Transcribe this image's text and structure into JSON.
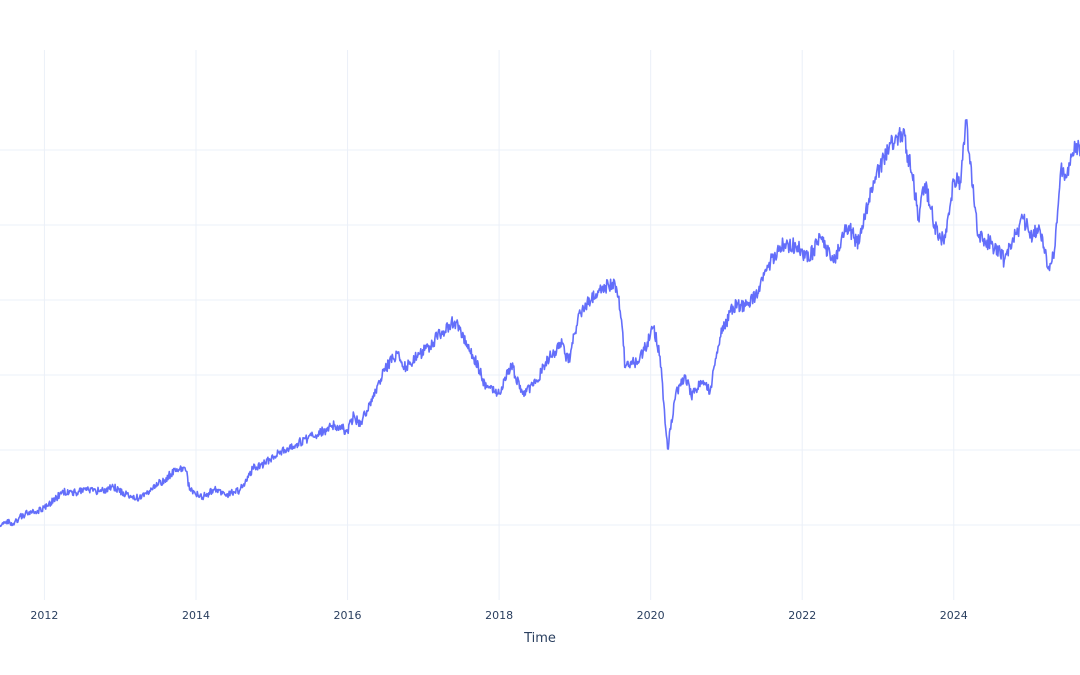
{
  "chart_data": {
    "type": "line",
    "title": "",
    "xlabel": "Time",
    "ylabel": "",
    "x_tick_labels": [
      "2012",
      "2014",
      "2016",
      "2018",
      "2020",
      "2022",
      "2024"
    ],
    "xlim": [
      "2011-06-01",
      "2025-09-01"
    ],
    "grid": true,
    "legend": "none",
    "series": [
      {
        "color": "#636efa",
        "points": [
          [
            "2011-06-01",
            0.0
          ],
          [
            "2011-07-01",
            0.3
          ],
          [
            "2011-08-01",
            0.0
          ],
          [
            "2011-09-01",
            0.6
          ],
          [
            "2011-10-01",
            0.9
          ],
          [
            "2011-12-01",
            1.1
          ],
          [
            "2012-02-01",
            1.8
          ],
          [
            "2012-04-01",
            2.7
          ],
          [
            "2012-06-01",
            2.6
          ],
          [
            "2012-08-01",
            2.8
          ],
          [
            "2012-10-01",
            2.7
          ],
          [
            "2012-12-01",
            3.0
          ],
          [
            "2013-02-01",
            2.5
          ],
          [
            "2013-04-01",
            2.1
          ],
          [
            "2013-06-01",
            2.9
          ],
          [
            "2013-08-01",
            3.6
          ],
          [
            "2013-10-01",
            4.5
          ],
          [
            "2013-11-15",
            4.3
          ],
          [
            "2013-12-01",
            2.8
          ],
          [
            "2014-02-01",
            2.2
          ],
          [
            "2014-04-01",
            2.9
          ],
          [
            "2014-06-01",
            2.5
          ],
          [
            "2014-08-01",
            2.8
          ],
          [
            "2014-10-01",
            4.5
          ],
          [
            "2014-12-01",
            5.0
          ],
          [
            "2015-02-01",
            5.8
          ],
          [
            "2015-05-01",
            6.5
          ],
          [
            "2015-08-01",
            7.2
          ],
          [
            "2015-11-01",
            8.0
          ],
          [
            "2016-01-01",
            7.5
          ],
          [
            "2016-02-01",
            8.8
          ],
          [
            "2016-03-01",
            7.9
          ],
          [
            "2016-05-01",
            10.3
          ],
          [
            "2016-07-01",
            12.5
          ],
          [
            "2016-09-01",
            13.8
          ],
          [
            "2016-10-01",
            12.6
          ],
          [
            "2016-12-01",
            13.5
          ],
          [
            "2017-02-01",
            14.3
          ],
          [
            "2017-04-01",
            15.5
          ],
          [
            "2017-06-01",
            16.3
          ],
          [
            "2017-07-01",
            15.5
          ],
          [
            "2017-09-01",
            13.4
          ],
          [
            "2017-11-01",
            11.0
          ],
          [
            "2018-01-01",
            10.5
          ],
          [
            "2018-03-01",
            12.8
          ],
          [
            "2018-05-01",
            10.3
          ],
          [
            "2018-07-01",
            11.6
          ],
          [
            "2018-09-01",
            13.5
          ],
          [
            "2018-11-01",
            14.5
          ],
          [
            "2018-12-01",
            13.0
          ],
          [
            "2019-01-15",
            16.5
          ],
          [
            "2019-03-01",
            17.8
          ],
          [
            "2019-05-01",
            18.8
          ],
          [
            "2019-07-01",
            19.4
          ],
          [
            "2019-08-01",
            18.3
          ],
          [
            "2019-09-01",
            12.6
          ],
          [
            "2019-10-15",
            13.0
          ],
          [
            "2019-12-01",
            14.0
          ],
          [
            "2020-01-15",
            15.8
          ],
          [
            "2020-02-15",
            13.5
          ],
          [
            "2020-03-23",
            6.1
          ],
          [
            "2020-05-01",
            10.5
          ],
          [
            "2020-06-15",
            12.0
          ],
          [
            "2020-07-15",
            10.3
          ],
          [
            "2020-09-01",
            11.5
          ],
          [
            "2020-10-15",
            10.8
          ],
          [
            "2020-12-01",
            15.0
          ],
          [
            "2021-02-01",
            17.5
          ],
          [
            "2021-04-01",
            17.5
          ],
          [
            "2021-06-01",
            18.5
          ],
          [
            "2021-08-01",
            21.0
          ],
          [
            "2021-10-01",
            22.5
          ],
          [
            "2021-12-01",
            22.3
          ],
          [
            "2022-02-01",
            21.3
          ],
          [
            "2022-04-01",
            23.0
          ],
          [
            "2022-06-01",
            21.0
          ],
          [
            "2022-08-01",
            24.0
          ],
          [
            "2022-10-01",
            22.5
          ],
          [
            "2022-12-01",
            27.0
          ],
          [
            "2023-03-01",
            30.5
          ],
          [
            "2023-05-01",
            31.3
          ],
          [
            "2023-06-15",
            28.0
          ],
          [
            "2023-07-15",
            24.5
          ],
          [
            "2023-08-15",
            27.3
          ],
          [
            "2023-10-01",
            24.0
          ],
          [
            "2023-11-15",
            22.5
          ],
          [
            "2024-01-01",
            27.5
          ],
          [
            "2024-02-01",
            27.5
          ],
          [
            "2024-03-01",
            32.2
          ],
          [
            "2024-04-01",
            27.0
          ],
          [
            "2024-05-01",
            23.0
          ],
          [
            "2024-07-01",
            22.5
          ],
          [
            "2024-09-01",
            21.2
          ],
          [
            "2024-10-15",
            22.8
          ],
          [
            "2024-12-01",
            24.5
          ],
          [
            "2025-01-15",
            23.0
          ],
          [
            "2025-02-15",
            24.0
          ],
          [
            "2025-04-01",
            20.5
          ],
          [
            "2025-05-01",
            22.0
          ],
          [
            "2025-06-01",
            28.5
          ],
          [
            "2025-07-01",
            28.0
          ],
          [
            "2025-08-15",
            30.5
          ],
          [
            "2025-09-01",
            29.5
          ]
        ]
      }
    ]
  }
}
